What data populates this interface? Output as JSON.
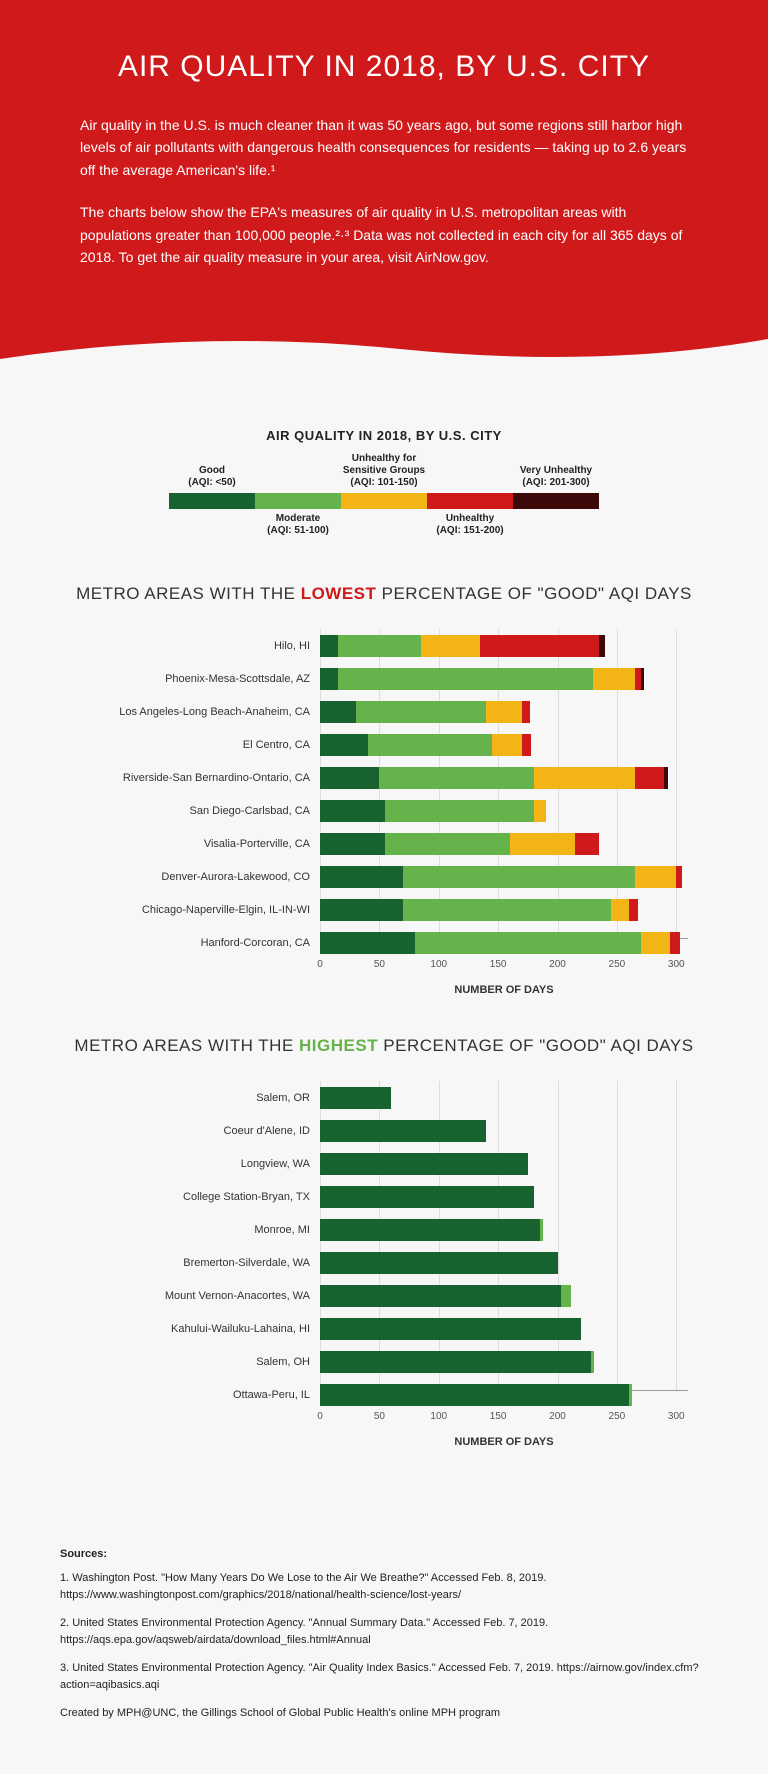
{
  "hero": {
    "title": "AIR QUALITY IN 2018, BY U.S. CITY",
    "p1": "Air quality in the U.S. is much cleaner than it was 50 years ago, but some regions still harbor high levels of air pollutants with dangerous health consequences for residents — taking up to 2.6 years off the average American's life.¹",
    "p2": "The charts below show the EPA's measures of air quality in U.S. metropolitan areas with populations greater than 100,000 people.²·³ Data was not collected in each city for all 365 days of 2018. To get the air quality measure in your area, visit AirNow.gov."
  },
  "legend": {
    "title": "AIR QUALITY IN 2018, BY U.S. CITY",
    "items": [
      {
        "label": "Good",
        "sub": "(AQI: <50)",
        "color": "#18622f",
        "pos": "top"
      },
      {
        "label": "Moderate",
        "sub": "(AQI: 51-100)",
        "color": "#67b34b",
        "pos": "bottom"
      },
      {
        "label": "Unhealthy for Sensitive Groups",
        "sub": "(AQI: 101-150)",
        "color": "#f3b515",
        "pos": "top"
      },
      {
        "label": "Unhealthy",
        "sub": "(AQI: 151-200)",
        "color": "#d0191b",
        "pos": "bottom"
      },
      {
        "label": "Very Unhealthy",
        "sub": "(AQI: 201-300)",
        "color": "#3d0808",
        "pos": "top"
      }
    ]
  },
  "colors": {
    "good": "#18622f",
    "moderate": "#67b34b",
    "usg": "#f3b515",
    "unhealthy": "#d0191b",
    "vunhealthy": "#3d0808"
  },
  "chart_lowest": {
    "title_pre": "METRO AREAS WITH THE ",
    "title_hl": "LOWEST",
    "title_post": " PERCENTAGE OF \"GOOD\" AQI DAYS",
    "x_max": 320,
    "x_ticks": [
      0,
      50,
      100,
      150,
      200,
      250,
      300
    ],
    "x_title": "NUMBER OF DAYS",
    "rows": [
      {
        "label": "Hilo, HI",
        "v": [
          15,
          70,
          50,
          100,
          5
        ]
      },
      {
        "label": "Phoenix-Mesa-Scottsdale, AZ",
        "v": [
          15,
          215,
          35,
          5,
          3
        ]
      },
      {
        "label": "Los Angeles-Long Beach-Anaheim, CA",
        "v": [
          30,
          110,
          30,
          7,
          0
        ]
      },
      {
        "label": "El Centro, CA",
        "v": [
          40,
          105,
          25,
          8,
          0
        ]
      },
      {
        "label": "Riverside-San Bernardino-Ontario, CA",
        "v": [
          50,
          130,
          85,
          25,
          3
        ]
      },
      {
        "label": "San Diego-Carlsbad, CA",
        "v": [
          55,
          125,
          10,
          0,
          0
        ]
      },
      {
        "label": "Visalia-Porterville, CA",
        "v": [
          55,
          105,
          55,
          20,
          0
        ]
      },
      {
        "label": "Denver-Aurora-Lakewood, CO",
        "v": [
          70,
          195,
          35,
          5,
          0
        ]
      },
      {
        "label": "Chicago-Naperville-Elgin, IL-IN-WI",
        "v": [
          70,
          175,
          15,
          8,
          0
        ]
      },
      {
        "label": "Hanford-Corcoran, CA",
        "v": [
          80,
          190,
          25,
          8,
          0
        ]
      }
    ]
  },
  "chart_highest": {
    "title_pre": "METRO AREAS WITH THE ",
    "title_hl": "HIGHEST",
    "title_post": " PERCENTAGE OF \"GOOD\" AQI DAYS",
    "x_max": 320,
    "x_ticks": [
      0,
      50,
      100,
      150,
      200,
      250,
      300
    ],
    "x_title": "NUMBER OF DAYS",
    "rows": [
      {
        "label": "Salem, OR",
        "v": [
          60,
          0,
          0,
          0,
          0
        ]
      },
      {
        "label": "Coeur d'Alene, ID",
        "v": [
          140,
          0,
          0,
          0,
          0
        ]
      },
      {
        "label": "Longview, WA",
        "v": [
          175,
          0,
          0,
          0,
          0
        ]
      },
      {
        "label": "College Station-Bryan, TX",
        "v": [
          180,
          0,
          0,
          0,
          0
        ]
      },
      {
        "label": "Monroe, MI",
        "v": [
          185,
          3,
          0,
          0,
          0
        ]
      },
      {
        "label": "Bremerton-Silverdale, WA",
        "v": [
          200,
          0,
          0,
          0,
          0
        ]
      },
      {
        "label": "Mount Vernon-Anacortes, WA",
        "v": [
          203,
          8,
          0,
          0,
          0
        ]
      },
      {
        "label": "Kahului-Wailuku-Lahaina, HI",
        "v": [
          220,
          0,
          0,
          0,
          0
        ]
      },
      {
        "label": "Salem, OH",
        "v": [
          228,
          3,
          0,
          0,
          0
        ]
      },
      {
        "label": "Ottawa-Peru, IL",
        "v": [
          260,
          3,
          0,
          0,
          0
        ]
      }
    ]
  },
  "sources": {
    "heading": "Sources:",
    "items": [
      "1. Washington Post. \"How Many Years Do We Lose to the Air We Breathe?\" Accessed Feb. 8, 2019. https://www.washingtonpost.com/graphics/2018/national/health-science/lost-years/",
      "2. United States Environmental Protection Agency. \"Annual Summary Data.\" Accessed Feb. 7, 2019. https://aqs.epa.gov/aqsweb/airdata/download_files.html#Annual",
      "3. United States Environmental Protection Agency. \"Air Quality Index Basics.\" Accessed Feb. 7, 2019. https://airnow.gov/index.cfm?action=aqibasics.aqi"
    ],
    "credit": "Created by MPH@UNC, the Gillings School of Global Public Health's online MPH program"
  }
}
